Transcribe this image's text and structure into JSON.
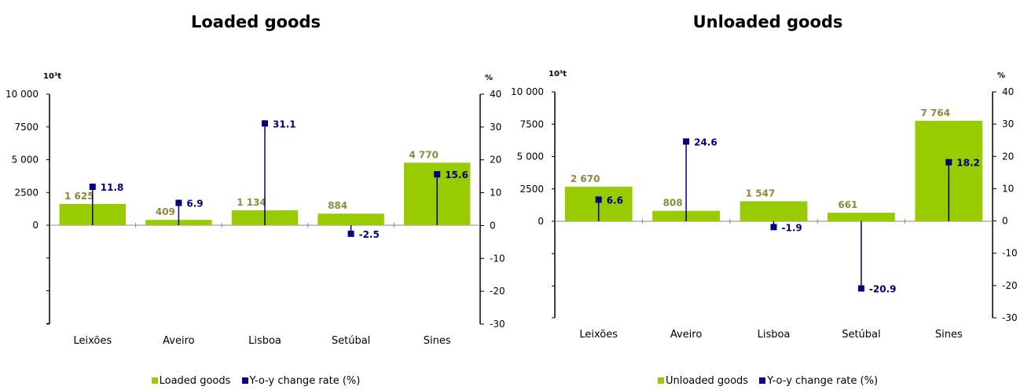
{
  "colors": {
    "bar": "#99cc00",
    "bar_label": "#8b8b3c",
    "rate": "#000080",
    "axis": "#000000"
  },
  "chart_data": [
    {
      "type": "bar",
      "title": "Loaded goods",
      "ylabel": "10³t",
      "y2label": "%",
      "ylim": [
        0,
        10000
      ],
      "yticks": [
        "10 000",
        "7500",
        "5 000",
        "2500",
        "0"
      ],
      "y2lim": [
        -30,
        40
      ],
      "y2ticks": [
        "40",
        "30",
        "20",
        "10",
        "0",
        "-10",
        "-20",
        "-30"
      ],
      "categories": [
        "Leixões",
        "Aveiro",
        "Lisboa",
        "Setúbal",
        "Sines"
      ],
      "series": [
        {
          "name": "Loaded goods",
          "values": [
            1625,
            409,
            1134,
            884,
            4770
          ],
          "labels": [
            "1 625",
            "409",
            "1 134",
            "884",
            "4 770"
          ]
        },
        {
          "name": "Y-o-y change rate  (%)",
          "values": [
            11.8,
            6.9,
            31.1,
            -2.5,
            15.6
          ],
          "labels": [
            "11.8",
            "6.9",
            "31.1",
            "-2.5",
            "15.6"
          ]
        }
      ],
      "legend": "bottom"
    },
    {
      "type": "bar",
      "title": "Unloaded goods",
      "ylabel": "10³t",
      "y2label": "%",
      "ylim": [
        0,
        10000
      ],
      "yticks": [
        "10 000",
        "7500",
        "5 000",
        "2500",
        "0"
      ],
      "y2lim": [
        -30,
        40
      ],
      "y2ticks": [
        "40",
        "30",
        "20",
        "10",
        "0",
        "-10",
        "-20",
        "-30"
      ],
      "categories": [
        "Leixões",
        "Aveiro",
        "Lisboa",
        "Setúbal",
        "Sines"
      ],
      "series": [
        {
          "name": "Unloaded goods",
          "values": [
            2670,
            808,
            1547,
            661,
            7764
          ],
          "labels": [
            "2 670",
            "808",
            "1 547",
            "661",
            "7 764"
          ]
        },
        {
          "name": "Y-o-y change rate  (%)",
          "values": [
            6.6,
            24.6,
            -1.9,
            -20.9,
            18.2
          ],
          "labels": [
            "6.6",
            "24.6",
            "-1.9",
            "-20.9",
            "18.2"
          ]
        }
      ],
      "legend": "bottom"
    }
  ]
}
